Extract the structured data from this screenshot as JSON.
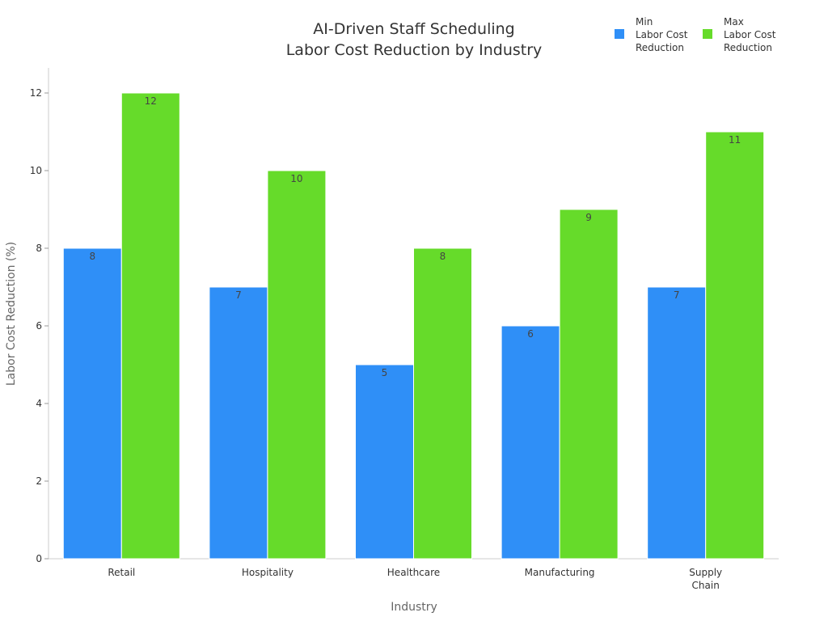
{
  "chart_data": {
    "type": "bar",
    "title": [
      "AI-Driven Staff Scheduling",
      "Labor Cost Reduction by Industry"
    ],
    "xlabel": "Industry",
    "ylabel": "Labor Cost Reduction (%)",
    "categories": [
      [
        "Retail"
      ],
      [
        "Hospitality"
      ],
      [
        "Healthcare"
      ],
      [
        "Manufacturing"
      ],
      [
        "Supply",
        "Chain"
      ]
    ],
    "series": [
      {
        "name": [
          "Min",
          "Labor Cost",
          "Reduction"
        ],
        "color": "#2f8ff7",
        "values": [
          8,
          7,
          5,
          6,
          7
        ]
      },
      {
        "name": [
          "Max",
          "Labor Cost",
          "Reduction"
        ],
        "color": "#66db2a",
        "values": [
          12,
          10,
          8,
          9,
          11
        ]
      }
    ],
    "ylim": [
      0,
      12.6
    ],
    "yticks": [
      0,
      2,
      4,
      6,
      8,
      10,
      12
    ],
    "grid": false,
    "legend": "top-right",
    "data_labels": true
  }
}
